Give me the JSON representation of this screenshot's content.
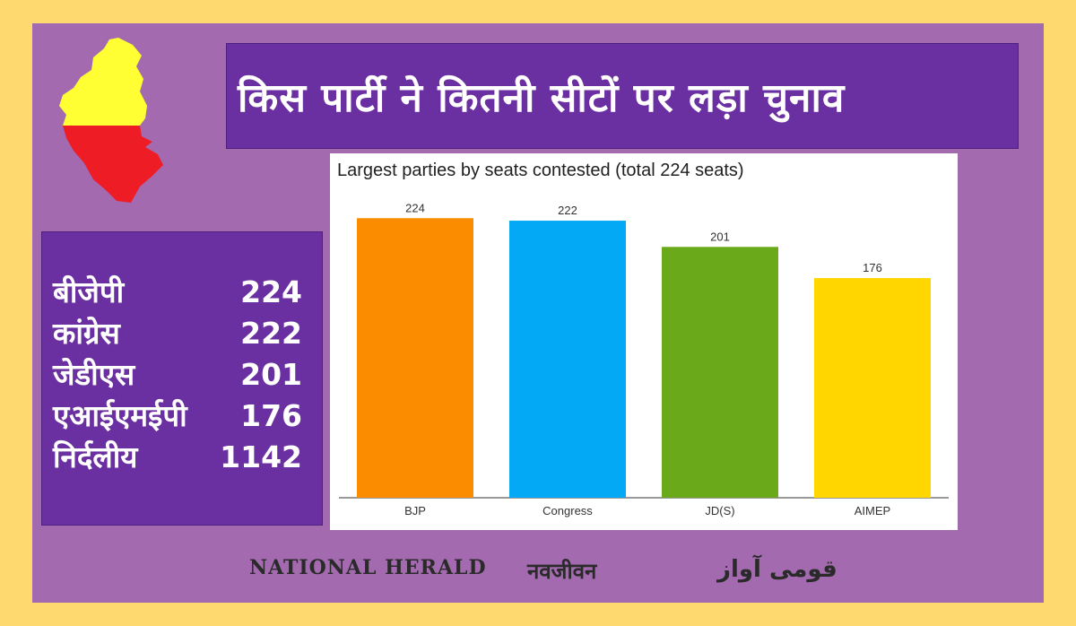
{
  "headline": "किस पार्टी ने कितनी सीटों पर लड़ा चुनाव",
  "stats": [
    {
      "party": "बीजेपी",
      "seats": "224"
    },
    {
      "party": "कांग्रेस",
      "seats": "222"
    },
    {
      "party": "जेडीएस",
      "seats": "201"
    },
    {
      "party": "एआईएमईपी",
      "seats": "176"
    },
    {
      "party": "निर्दलीय",
      "seats": "1142"
    }
  ],
  "footer": {
    "logo1": "NATIONAL HERALD",
    "logo2": "नवजीवन",
    "logo3": "قومی آواز"
  },
  "colors": {
    "background": "#fdd96f",
    "frame": "#a46ab0",
    "panel": "#6a2fa0",
    "map_top": "#ffff33",
    "map_bottom": "#ee1c25"
  },
  "chart_data": {
    "type": "bar",
    "title": "Largest parties by seats contested (total 224 seats)",
    "categories": [
      "BJP",
      "Congress",
      "JD(S)",
      "AIMEP"
    ],
    "values": [
      224,
      222,
      201,
      176
    ],
    "colors": [
      "#fb8c00",
      "#03a9f4",
      "#6aaa1a",
      "#ffd600"
    ],
    "ylim": [
      0,
      240
    ],
    "grid": false,
    "legend": "none",
    "xlabel": "",
    "ylabel": ""
  }
}
